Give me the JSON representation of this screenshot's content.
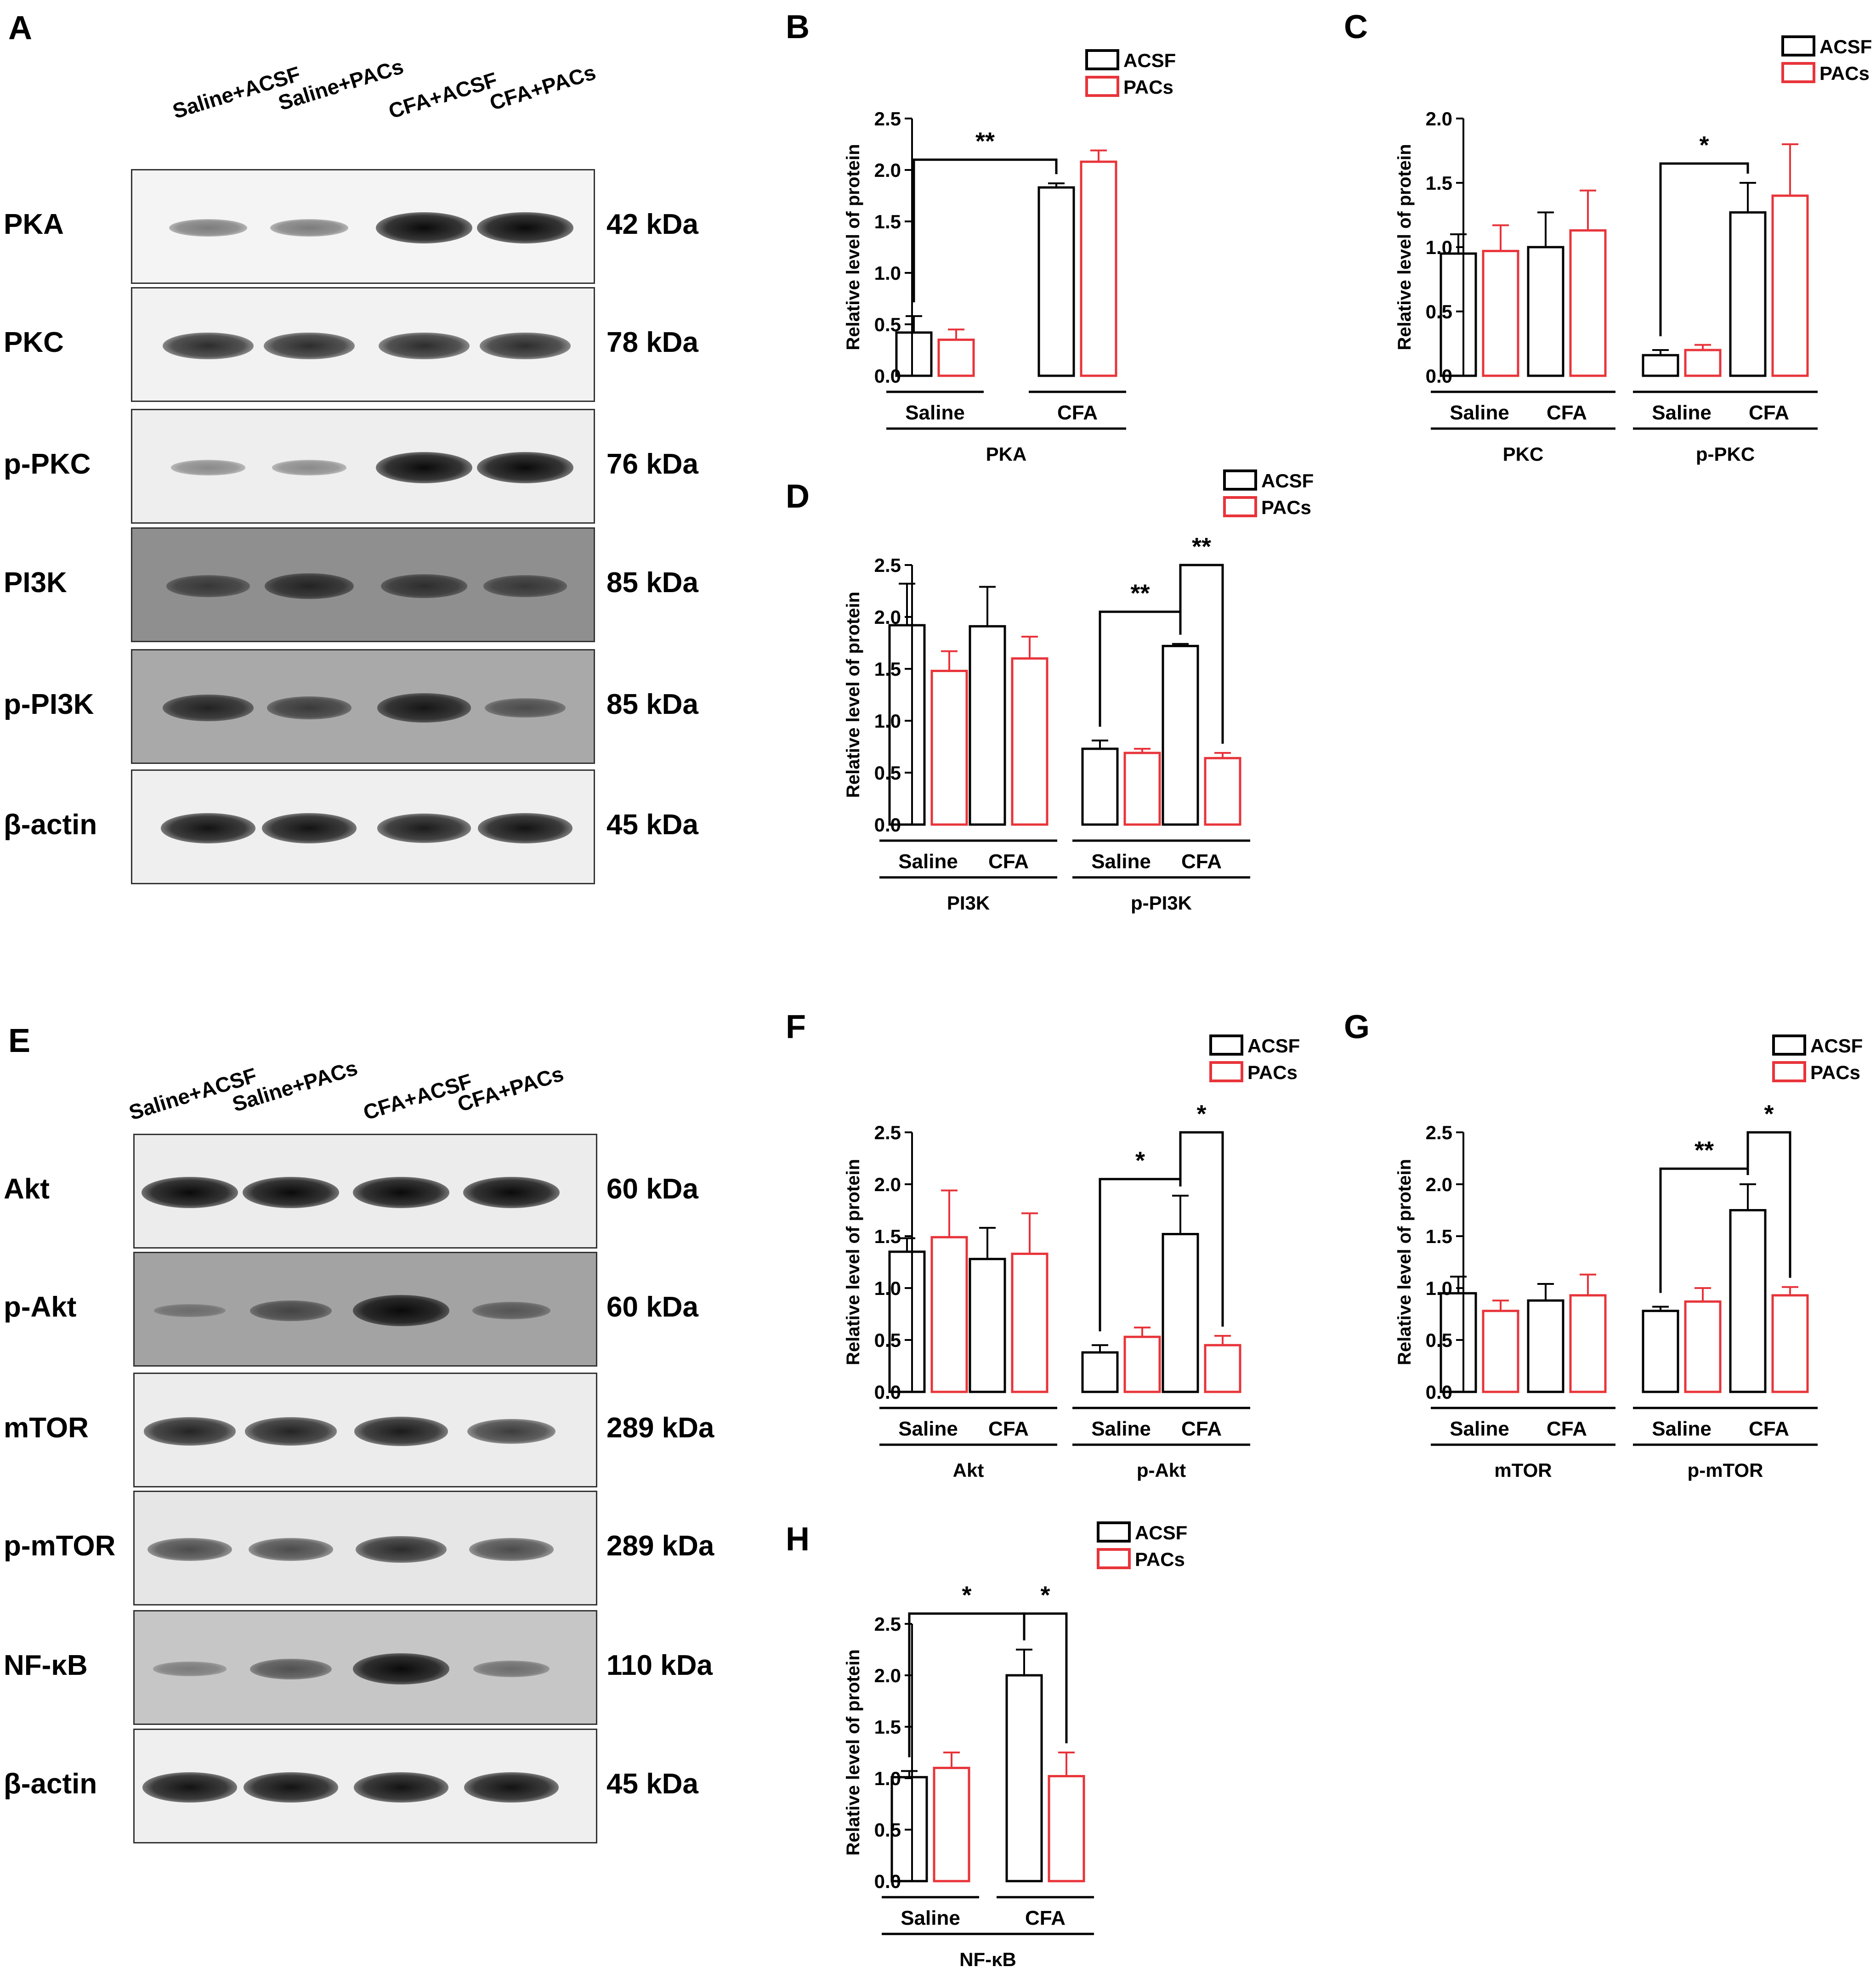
{
  "panels": {
    "A": "A",
    "B": "B",
    "C": "C",
    "D": "D",
    "E": "E",
    "F": "F",
    "G": "G",
    "H": "H"
  },
  "blot_A": {
    "lanes": [
      "Saline+ACSF",
      "Saline+PACs",
      "CFA+ACSF",
      "CFA+PACs"
    ],
    "rows": [
      {
        "label": "PKA",
        "kda": "42 kDa",
        "bg": "#f4f4f4",
        "intensity": [
          0.35,
          0.35,
          1.0,
          1.0
        ]
      },
      {
        "label": "PKC",
        "kda": "78 kDa",
        "bg": "#f2f2f2",
        "intensity": [
          0.8,
          0.8,
          0.8,
          0.8
        ]
      },
      {
        "label": "p-PKC",
        "kda": "76 kDa",
        "bg": "#eeeeee",
        "intensity": [
          0.25,
          0.25,
          1.0,
          1.0
        ]
      },
      {
        "label": "PI3K",
        "kda": "85 kDa",
        "bg": "#8f8f8f",
        "intensity": [
          0.55,
          0.75,
          0.65,
          0.55
        ]
      },
      {
        "label": "p-PI3K",
        "kda": "85 kDa",
        "bg": "#a9a9a9",
        "intensity": [
          0.8,
          0.6,
          0.9,
          0.45
        ]
      },
      {
        "label": "β-actin",
        "kda": "45 kDa",
        "bg": "#efefef",
        "intensity": [
          0.95,
          0.95,
          0.9,
          0.95
        ]
      }
    ]
  },
  "blot_E": {
    "lanes": [
      "Saline+ACSF",
      "Saline+PACs",
      "CFA+ACSF",
      "CFA+PACs"
    ],
    "rows": [
      {
        "label": "Akt",
        "kda": "60 kDa",
        "bg": "#ececec",
        "intensity": [
          1.0,
          1.0,
          1.0,
          1.0
        ]
      },
      {
        "label": "p-Akt",
        "kda": "60 kDa",
        "bg": "#a3a3a3",
        "intensity": [
          0.15,
          0.5,
          1.0,
          0.35
        ]
      },
      {
        "label": "mTOR",
        "kda": "289 kDa",
        "bg": "#ececec",
        "intensity": [
          0.85,
          0.85,
          0.9,
          0.7
        ]
      },
      {
        "label": "p-mTOR",
        "kda": "289 kDa",
        "bg": "#e6e6e6",
        "intensity": [
          0.6,
          0.6,
          0.8,
          0.6
        ]
      },
      {
        "label": "NF-κB",
        "kda": "110 kDa",
        "bg": "#c6c6c6",
        "intensity": [
          0.2,
          0.5,
          1.0,
          0.3
        ]
      },
      {
        "label": "β-actin",
        "kda": "45 kDa",
        "bg": "#efefef",
        "intensity": [
          0.95,
          0.95,
          0.95,
          0.95
        ]
      }
    ]
  },
  "legend": {
    "s1": "ACSF",
    "s2": "PACs"
  },
  "colors": {
    "acsf": "#000000",
    "pacs": "#e8343a"
  },
  "chart_data": [
    {
      "id": "B",
      "type": "bar",
      "ylabel": "Relative level of protein",
      "ylim": [
        0,
        2.5
      ],
      "yticks": [
        "0.0",
        "0.5",
        "1.0",
        "1.5",
        "2.0",
        "2.5"
      ],
      "groups": [
        {
          "label": "Saline",
          "acsf": 0.42,
          "acsf_err": 0.16,
          "pacs": 0.35,
          "pacs_err": 0.1
        },
        {
          "label": "CFA",
          "acsf": 1.83,
          "acsf_err": 0.04,
          "pacs": 2.08,
          "pacs_err": 0.11
        }
      ],
      "proteins": [
        {
          "label": "PKA",
          "groups": [
            0,
            1
          ]
        }
      ],
      "sig": [
        {
          "text": "**",
          "from": [
            0,
            "acsf"
          ],
          "to": [
            1,
            "acsf"
          ],
          "level": 2.1
        }
      ]
    },
    {
      "id": "C",
      "type": "bar",
      "ylabel": "Relative level of protein",
      "ylim": [
        0,
        2.0
      ],
      "yticks": [
        "0.0",
        "0.5",
        "1.0",
        "1.5",
        "2.0"
      ],
      "groups": [
        {
          "label": "Saline",
          "acsf": 0.95,
          "acsf_err": 0.15,
          "pacs": 0.97,
          "pacs_err": 0.2
        },
        {
          "label": "CFA",
          "acsf": 1.0,
          "acsf_err": 0.27,
          "pacs": 1.13,
          "pacs_err": 0.31
        },
        {
          "label": "Saline",
          "acsf": 0.16,
          "acsf_err": 0.04,
          "pacs": 0.2,
          "pacs_err": 0.04
        },
        {
          "label": "CFA",
          "acsf": 1.27,
          "acsf_err": 0.23,
          "pacs": 1.4,
          "pacs_err": 0.4
        }
      ],
      "proteins": [
        {
          "label": "PKC",
          "groups": [
            0,
            1
          ]
        },
        {
          "label": "p-PKC",
          "groups": [
            2,
            3
          ]
        }
      ],
      "sig": [
        {
          "text": "*",
          "from": [
            2,
            "acsf"
          ],
          "to": [
            3,
            "acsf"
          ],
          "level": 1.65
        }
      ]
    },
    {
      "id": "D",
      "type": "bar",
      "ylabel": "Relative level of protein",
      "ylim": [
        0,
        2.5
      ],
      "yticks": [
        "0.0",
        "0.5",
        "1.0",
        "1.5",
        "2.0",
        "2.5"
      ],
      "groups": [
        {
          "label": "Saline",
          "acsf": 1.92,
          "acsf_err": 0.4,
          "pacs": 1.48,
          "pacs_err": 0.19
        },
        {
          "label": "CFA",
          "acsf": 1.91,
          "acsf_err": 0.38,
          "pacs": 1.6,
          "pacs_err": 0.21
        },
        {
          "label": "Saline",
          "acsf": 0.73,
          "acsf_err": 0.08,
          "pacs": 0.69,
          "pacs_err": 0.04
        },
        {
          "label": "CFA",
          "acsf": 1.72,
          "acsf_err": 0.02,
          "pacs": 0.64,
          "pacs_err": 0.05
        }
      ],
      "proteins": [
        {
          "label": "PI3K",
          "groups": [
            0,
            1
          ]
        },
        {
          "label": "p-PI3K",
          "groups": [
            2,
            3
          ]
        }
      ],
      "sig": [
        {
          "text": "**",
          "from": [
            2,
            "acsf"
          ],
          "to": [
            3,
            "acsf"
          ],
          "level": 2.05
        },
        {
          "text": "**",
          "from": [
            3,
            "acsf"
          ],
          "to": [
            3,
            "pacs"
          ],
          "level": 2.5
        }
      ]
    },
    {
      "id": "F",
      "type": "bar",
      "ylabel": "Relative level of protein",
      "ylim": [
        0,
        2.5
      ],
      "yticks": [
        "0.0",
        "0.5",
        "1.0",
        "1.5",
        "2.0",
        "2.5"
      ],
      "groups": [
        {
          "label": "Saline",
          "acsf": 1.35,
          "acsf_err": 0.13,
          "pacs": 1.49,
          "pacs_err": 0.45
        },
        {
          "label": "CFA",
          "acsf": 1.28,
          "acsf_err": 0.3,
          "pacs": 1.33,
          "pacs_err": 0.39
        },
        {
          "label": "Saline",
          "acsf": 0.38,
          "acsf_err": 0.07,
          "pacs": 0.53,
          "pacs_err": 0.09
        },
        {
          "label": "CFA",
          "acsf": 1.52,
          "acsf_err": 0.37,
          "pacs": 0.45,
          "pacs_err": 0.09
        }
      ],
      "proteins": [
        {
          "label": "Akt",
          "groups": [
            0,
            1
          ]
        },
        {
          "label": "p-Akt",
          "groups": [
            2,
            3
          ]
        }
      ],
      "sig": [
        {
          "text": "*",
          "from": [
            2,
            "acsf"
          ],
          "to": [
            3,
            "acsf"
          ],
          "level": 2.05
        },
        {
          "text": "*",
          "from": [
            3,
            "acsf"
          ],
          "to": [
            3,
            "pacs"
          ],
          "level": 2.5
        }
      ]
    },
    {
      "id": "G",
      "type": "bar",
      "ylabel": "Relative level of protein",
      "ylim": [
        0,
        2.5
      ],
      "yticks": [
        "0.0",
        "0.5",
        "1.0",
        "1.5",
        "2.0",
        "2.5"
      ],
      "groups": [
        {
          "label": "Saline",
          "acsf": 0.95,
          "acsf_err": 0.16,
          "pacs": 0.78,
          "pacs_err": 0.1
        },
        {
          "label": "CFA",
          "acsf": 0.88,
          "acsf_err": 0.16,
          "pacs": 0.93,
          "pacs_err": 0.2
        },
        {
          "label": "Saline",
          "acsf": 0.78,
          "acsf_err": 0.04,
          "pacs": 0.87,
          "pacs_err": 0.13
        },
        {
          "label": "CFA",
          "acsf": 1.75,
          "acsf_err": 0.25,
          "pacs": 0.93,
          "pacs_err": 0.08
        }
      ],
      "proteins": [
        {
          "label": "mTOR",
          "groups": [
            0,
            1
          ]
        },
        {
          "label": "p-mTOR",
          "groups": [
            2,
            3
          ]
        }
      ],
      "sig": [
        {
          "text": "**",
          "from": [
            2,
            "acsf"
          ],
          "to": [
            3,
            "acsf"
          ],
          "level": 2.15
        },
        {
          "text": "*",
          "from": [
            3,
            "acsf"
          ],
          "to": [
            3,
            "pacs"
          ],
          "level": 2.5
        }
      ]
    },
    {
      "id": "H",
      "type": "bar",
      "ylabel": "Relative level of protein",
      "ylim": [
        0,
        2.5
      ],
      "yticks": [
        "0.0",
        "0.5",
        "1.0",
        "1.5",
        "2.0",
        "2.5"
      ],
      "groups": [
        {
          "label": "Saline",
          "acsf": 1.01,
          "acsf_err": 0.06,
          "pacs": 1.1,
          "pacs_err": 0.15
        },
        {
          "label": "CFA",
          "acsf": 2.0,
          "acsf_err": 0.25,
          "pacs": 1.02,
          "pacs_err": 0.23
        }
      ],
      "proteins": [
        {
          "label": "NF-κB",
          "groups": [
            0,
            1
          ]
        }
      ],
      "sig": [
        {
          "text": "*",
          "from": [
            0,
            "acsf"
          ],
          "to": [
            1,
            "acsf"
          ],
          "level": 2.6
        },
        {
          "text": "*",
          "from": [
            1,
            "acsf"
          ],
          "to": [
            1,
            "pacs"
          ],
          "level": 2.6
        }
      ]
    }
  ]
}
